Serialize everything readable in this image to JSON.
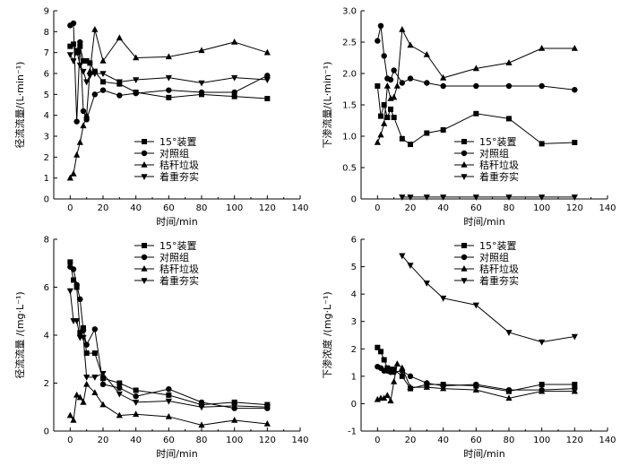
{
  "chart_data": [
    {
      "type": "line",
      "xlabel": "时间/min",
      "ylabel": "径流流量/(L·min⁻¹)",
      "xlim": [
        -10,
        140
      ],
      "ylim": [
        0,
        9
      ],
      "xticks": [
        0,
        20,
        40,
        60,
        80,
        100,
        120,
        140
      ],
      "yticks": [
        0,
        1,
        2,
        3,
        4,
        5,
        6,
        7,
        8,
        9
      ],
      "legend": "bottom-center",
      "series": [
        {
          "name": "15°装置",
          "marker": "square",
          "x": [
            0,
            2,
            4,
            6,
            8,
            10,
            12,
            15,
            20,
            30,
            40,
            60,
            80,
            100,
            120
          ],
          "y": [
            7.3,
            7.4,
            7.0,
            7.3,
            6.6,
            6.6,
            6.5,
            6.1,
            5.6,
            5.5,
            5.1,
            4.85,
            5.0,
            4.9,
            4.8
          ]
        },
        {
          "name": "对照组",
          "marker": "circle",
          "x": [
            0,
            2,
            4,
            6,
            8,
            10,
            15,
            20,
            30,
            40,
            60,
            80,
            100,
            120
          ],
          "y": [
            8.3,
            8.4,
            3.7,
            7.5,
            4.2,
            3.8,
            5.0,
            5.2,
            4.95,
            5.05,
            5.2,
            5.1,
            5.1,
            5.9
          ]
        },
        {
          "name": "秸秆垃圾",
          "marker": "triangle-up",
          "x": [
            0,
            2,
            4,
            6,
            8,
            10,
            12,
            15,
            20,
            30,
            40,
            60,
            80,
            100,
            120
          ],
          "y": [
            1.0,
            1.2,
            2.1,
            2.7,
            3.5,
            4.0,
            6.1,
            8.1,
            6.6,
            7.7,
            6.75,
            6.8,
            7.1,
            7.5,
            7.0
          ]
        },
        {
          "name": "着重夯实",
          "marker": "triangle-down",
          "x": [
            0,
            2,
            4,
            6,
            8,
            10,
            12,
            15,
            20,
            30,
            40,
            60,
            80,
            100,
            120
          ],
          "y": [
            6.9,
            6.6,
            7.1,
            6.4,
            6.1,
            5.6,
            5.9,
            6.0,
            6.0,
            5.6,
            5.7,
            5.8,
            5.55,
            5.8,
            5.7
          ]
        }
      ]
    },
    {
      "type": "line",
      "xlabel": "时间/min",
      "ylabel": "下渗流量/(L·min⁻¹)",
      "xlim": [
        -10,
        140
      ],
      "ylim": [
        0,
        3.0
      ],
      "xticks": [
        0,
        20,
        40,
        60,
        80,
        100,
        120,
        140
      ],
      "yticks": [
        0,
        0.5,
        1.0,
        1.5,
        2.0,
        2.5,
        3.0
      ],
      "ytick_labels": [
        "0",
        "0.5",
        "1.0",
        "1.5",
        "2.0",
        "2.5",
        "3.0"
      ],
      "legend": "bottom-center",
      "series": [
        {
          "name": "15°装置",
          "marker": "square",
          "x": [
            0,
            2,
            4,
            6,
            8,
            10,
            15,
            20,
            30,
            40,
            60,
            80,
            100,
            120
          ],
          "y": [
            1.8,
            1.32,
            1.5,
            1.3,
            1.43,
            1.3,
            0.96,
            0.87,
            1.05,
            1.1,
            1.36,
            1.28,
            0.88,
            0.9
          ]
        },
        {
          "name": "对照组",
          "marker": "circle",
          "x": [
            0,
            2,
            4,
            6,
            8,
            10,
            15,
            20,
            30,
            40,
            60,
            80,
            100,
            120
          ],
          "y": [
            2.52,
            2.76,
            2.28,
            1.92,
            1.9,
            2.05,
            1.85,
            1.92,
            1.85,
            1.8,
            1.8,
            1.8,
            1.8,
            1.74
          ]
        },
        {
          "name": "秸秆垃圾",
          "marker": "triangle-up",
          "x": [
            0,
            2,
            4,
            6,
            8,
            10,
            12,
            15,
            20,
            30,
            40,
            60,
            80,
            100,
            120
          ],
          "y": [
            0.9,
            1.02,
            1.2,
            1.8,
            1.6,
            1.62,
            1.8,
            2.7,
            2.45,
            2.3,
            1.93,
            2.08,
            2.17,
            2.4,
            2.4
          ]
        },
        {
          "name": "着重夯实",
          "marker": "triangle-down",
          "x": [
            15,
            20,
            30,
            40,
            60,
            80,
            100,
            120
          ],
          "y": [
            0.03,
            0.03,
            0.03,
            0.03,
            0.03,
            0.03,
            0.03,
            0.03
          ]
        }
      ]
    },
    {
      "type": "line",
      "xlabel": "时间/min",
      "ylabel": "径流流量 /(mg·L⁻¹)",
      "xlim": [
        -10,
        140
      ],
      "ylim": [
        0,
        8
      ],
      "xticks": [
        0,
        20,
        40,
        60,
        80,
        100,
        120,
        140
      ],
      "yticks": [
        0,
        2,
        4,
        6,
        8
      ],
      "legend": "top-center",
      "series": [
        {
          "name": "15°装置",
          "marker": "square",
          "x": [
            0,
            2,
            4,
            6,
            8,
            10,
            15,
            20,
            30,
            40,
            60,
            80,
            100,
            120
          ],
          "y": [
            7.05,
            6.3,
            6.0,
            4.1,
            4.3,
            3.25,
            3.25,
            2.2,
            2.0,
            1.7,
            1.5,
            1.1,
            1.2,
            1.1
          ]
        },
        {
          "name": "对照组",
          "marker": "circle",
          "x": [
            0,
            2,
            4,
            6,
            8,
            10,
            15,
            20,
            30,
            40,
            60,
            80,
            100,
            120
          ],
          "y": [
            6.85,
            6.75,
            6.1,
            5.5,
            4.2,
            3.6,
            4.25,
            1.95,
            1.8,
            1.45,
            1.75,
            1.2,
            0.95,
            0.95
          ]
        },
        {
          "name": "秸秆垃圾",
          "marker": "triangle-up",
          "x": [
            0,
            2,
            4,
            6,
            8,
            10,
            15,
            20,
            30,
            40,
            60,
            80,
            100,
            120
          ],
          "y": [
            0.65,
            0.45,
            1.5,
            1.4,
            1.2,
            1.95,
            1.6,
            1.1,
            0.65,
            0.7,
            0.6,
            0.25,
            0.45,
            0.3
          ]
        },
        {
          "name": "着重夯实",
          "marker": "triangle-down",
          "x": [
            0,
            2,
            4,
            6,
            8,
            10,
            15,
            20,
            30,
            40,
            60,
            80,
            100,
            120
          ],
          "y": [
            5.85,
            4.6,
            4.6,
            3.9,
            3.9,
            2.25,
            2.25,
            2.4,
            1.55,
            1.2,
            1.25,
            1.0,
            1.05,
            1.0
          ]
        }
      ]
    },
    {
      "type": "line",
      "xlabel": "时间/min",
      "ylabel": "下渗浓度 /(mg·L⁻¹)",
      "xlim": [
        -10,
        140
      ],
      "ylim": [
        -1,
        6
      ],
      "xticks": [
        0,
        20,
        40,
        60,
        80,
        100,
        120,
        140
      ],
      "yticks": [
        -1,
        0,
        1,
        2,
        3,
        4,
        5,
        6
      ],
      "legend": "top-center",
      "series": [
        {
          "name": "15°装置",
          "marker": "square",
          "x": [
            0,
            2,
            4,
            6,
            8,
            10,
            15,
            20,
            30,
            40,
            60,
            80,
            100,
            120
          ],
          "y": [
            2.05,
            1.9,
            1.6,
            1.3,
            1.25,
            1.25,
            1.0,
            0.55,
            0.7,
            0.7,
            0.65,
            0.45,
            0.7,
            0.7
          ]
        },
        {
          "name": "对照组",
          "marker": "circle",
          "x": [
            0,
            2,
            4,
            6,
            8,
            10,
            15,
            20,
            30,
            40,
            60,
            80,
            100,
            120
          ],
          "y": [
            1.35,
            1.3,
            1.2,
            1.2,
            1.15,
            1.15,
            1.2,
            1.0,
            0.75,
            0.65,
            0.7,
            0.5,
            0.5,
            0.55
          ]
        },
        {
          "name": "秸秆垃圾",
          "marker": "triangle-up",
          "x": [
            0,
            2,
            4,
            6,
            8,
            10,
            12,
            15,
            20,
            30,
            40,
            60,
            80,
            100,
            120
          ],
          "y": [
            0.15,
            0.2,
            0.2,
            0.3,
            0.1,
            0.8,
            1.45,
            1.3,
            0.6,
            0.6,
            0.55,
            0.5,
            0.2,
            0.45,
            0.45
          ]
        },
        {
          "name": "着重夯实",
          "marker": "triangle-down",
          "x": [
            15,
            20,
            30,
            40,
            60,
            80,
            100,
            120
          ],
          "y": [
            5.4,
            5.05,
            4.4,
            3.85,
            3.6,
            2.6,
            2.25,
            2.45
          ]
        }
      ]
    }
  ]
}
